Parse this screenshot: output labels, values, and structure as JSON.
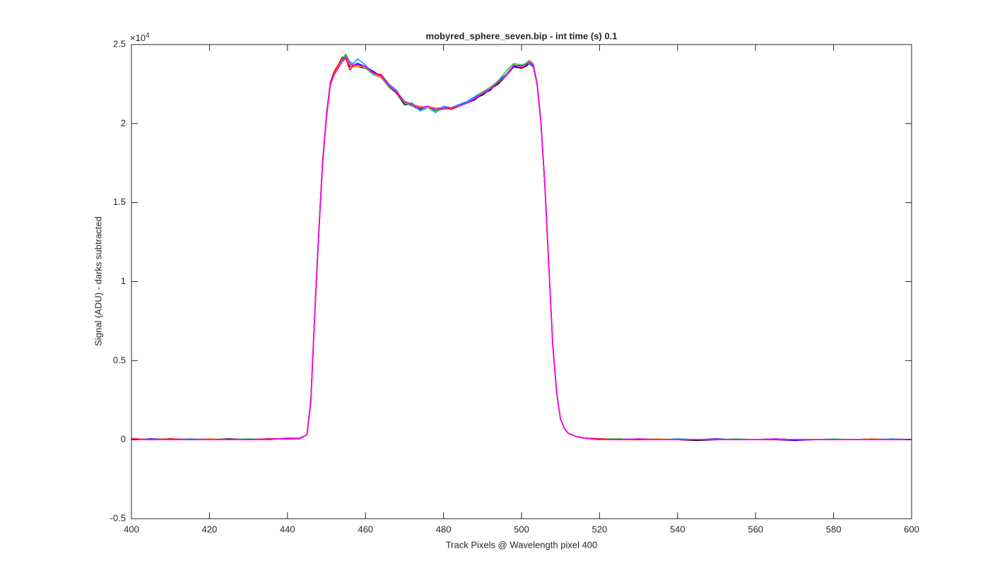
{
  "chart_data": {
    "type": "line",
    "title": "mobyred_sphere_seven.bip - int time (s) 0.1",
    "x_label": "Track Pixels @ Wavelength pixel 400",
    "y_label": "Signal (ADU) - darks subtracted",
    "y_multiplier": {
      "base": "×10",
      "exponent": "4"
    },
    "xlim": [
      400,
      600
    ],
    "xticks": [
      400,
      420,
      440,
      460,
      480,
      500,
      520,
      540,
      560,
      580,
      600
    ],
    "ylim": [
      -0.5,
      2.5
    ],
    "yticks": [
      -0.5,
      0,
      0.5,
      1,
      1.5,
      2,
      2.5
    ],
    "grid": false,
    "x": [
      400,
      405,
      410,
      415,
      420,
      425,
      430,
      435,
      440,
      443,
      445,
      446,
      447,
      448,
      449,
      450,
      451,
      452,
      453,
      454,
      455,
      456,
      457,
      458,
      460,
      462,
      464,
      466,
      468,
      470,
      472,
      474,
      476,
      478,
      480,
      482,
      484,
      486,
      488,
      490,
      492,
      494,
      496,
      498,
      500,
      501,
      502,
      503,
      504,
      505,
      506,
      507,
      508,
      509,
      510,
      511,
      512,
      514,
      516,
      520,
      525,
      530,
      535,
      540,
      545,
      550,
      555,
      560,
      565,
      570,
      575,
      580,
      585,
      590,
      595,
      600
    ],
    "series": [
      {
        "color": "#000000",
        "values": [
          0.005,
          0,
          0.005,
          0,
          0,
          0.005,
          0,
          0,
          0.01,
          0.005,
          0.03,
          0.26,
          0.8,
          1.3,
          1.76,
          2.06,
          2.26,
          2.33,
          2.37,
          2.41,
          2.42,
          2.37,
          2.36,
          2.36,
          2.35,
          2.33,
          2.29,
          2.24,
          2.19,
          2.12,
          2.12,
          2.1,
          2.1,
          2.09,
          2.09,
          2.1,
          2.11,
          2.13,
          2.16,
          2.18,
          2.22,
          2.25,
          2.3,
          2.36,
          2.35,
          2.36,
          2.38,
          2.37,
          2.25,
          2.0,
          1.6,
          1.1,
          0.6,
          0.3,
          0.13,
          0.07,
          0.04,
          0.02,
          0.01,
          0.005,
          0,
          0.005,
          0,
          0,
          -0.005,
          0,
          0,
          0,
          0.005,
          0,
          0,
          0,
          0,
          0,
          0,
          0
        ]
      },
      {
        "color": "#0000ff",
        "values": [
          0,
          0.005,
          0,
          0,
          0.005,
          0,
          0,
          0.005,
          0.005,
          0.01,
          0.03,
          0.24,
          0.79,
          1.29,
          1.74,
          2.04,
          2.24,
          2.32,
          2.36,
          2.4,
          2.41,
          2.36,
          2.37,
          2.38,
          2.36,
          2.33,
          2.3,
          2.23,
          2.19,
          2.13,
          2.11,
          2.09,
          2.11,
          2.08,
          2.1,
          2.1,
          2.12,
          2.13,
          2.15,
          2.19,
          2.21,
          2.27,
          2.31,
          2.36,
          2.37,
          2.37,
          2.38,
          2.36,
          2.25,
          2.0,
          1.6,
          1.1,
          0.6,
          0.3,
          0.13,
          0.07,
          0.04,
          0.02,
          0.01,
          0,
          0.005,
          0,
          0,
          0,
          0,
          0.005,
          0,
          0,
          0,
          -0.005,
          0,
          0,
          0,
          0.005,
          0,
          0
        ]
      },
      {
        "color": "#0099ff",
        "values": [
          0.005,
          0,
          0,
          0.005,
          0,
          0,
          0.005,
          0,
          0.01,
          0.005,
          0.03,
          0.25,
          0.81,
          1.31,
          1.75,
          2.05,
          2.25,
          2.33,
          2.37,
          2.4,
          2.43,
          2.39,
          2.38,
          2.41,
          2.37,
          2.31,
          2.31,
          2.25,
          2.21,
          2.13,
          2.13,
          2.08,
          2.1,
          2.07,
          2.11,
          2.1,
          2.12,
          2.14,
          2.17,
          2.2,
          2.23,
          2.26,
          2.31,
          2.37,
          2.36,
          2.38,
          2.38,
          2.37,
          2.24,
          2.0,
          1.61,
          1.1,
          0.61,
          0.3,
          0.13,
          0.07,
          0.04,
          0.02,
          0.01,
          0.005,
          0,
          0,
          0,
          0.005,
          0,
          0,
          0,
          0,
          0.005,
          0,
          0,
          0,
          0,
          0,
          0.005,
          0
        ]
      },
      {
        "color": "#33cc33",
        "values": [
          0,
          0,
          0.005,
          0,
          0,
          0,
          0.005,
          0,
          0.01,
          0.01,
          0.03,
          0.25,
          0.8,
          1.3,
          1.75,
          2.05,
          2.25,
          2.32,
          2.37,
          2.41,
          2.44,
          2.38,
          2.36,
          2.37,
          2.35,
          2.31,
          2.29,
          2.23,
          2.19,
          2.13,
          2.11,
          2.1,
          2.1,
          2.08,
          2.09,
          2.1,
          2.11,
          2.13,
          2.16,
          2.2,
          2.23,
          2.27,
          2.33,
          2.38,
          2.37,
          2.38,
          2.4,
          2.38,
          2.26,
          2.01,
          1.6,
          1.1,
          0.6,
          0.3,
          0.13,
          0.07,
          0.04,
          0.02,
          0.01,
          0.005,
          0.005,
          0,
          0,
          0,
          0,
          0,
          0.005,
          0,
          0,
          0,
          0,
          0.005,
          0,
          0,
          0,
          0
        ]
      },
      {
        "color": "#ff9900",
        "values": [
          0.01,
          0,
          0,
          0,
          0.005,
          0,
          0,
          0,
          0.01,
          0.005,
          0.03,
          0.25,
          0.8,
          1.3,
          1.75,
          2.05,
          2.24,
          2.31,
          2.36,
          2.39,
          2.41,
          2.37,
          2.36,
          2.36,
          2.36,
          2.32,
          2.29,
          2.24,
          2.2,
          2.14,
          2.12,
          2.11,
          2.1,
          2.1,
          2.1,
          2.1,
          2.11,
          2.13,
          2.16,
          2.19,
          2.22,
          2.26,
          2.3,
          2.37,
          2.36,
          2.37,
          2.39,
          2.37,
          2.25,
          2.0,
          1.6,
          1.1,
          0.6,
          0.3,
          0.13,
          0.07,
          0.04,
          0.02,
          0.01,
          0,
          0,
          0,
          0.005,
          0,
          0,
          0,
          0,
          0,
          0,
          0,
          0,
          0,
          0,
          0.005,
          0,
          0
        ]
      },
      {
        "color": "#ff0000",
        "values": [
          0,
          0,
          0.005,
          0,
          0,
          0,
          0,
          0.005,
          0.005,
          0.005,
          0.03,
          0.25,
          0.8,
          1.3,
          1.75,
          2.05,
          2.26,
          2.33,
          2.37,
          2.42,
          2.41,
          2.34,
          2.37,
          2.37,
          2.36,
          2.32,
          2.31,
          2.24,
          2.19,
          2.14,
          2.12,
          2.1,
          2.11,
          2.09,
          2.1,
          2.09,
          2.11,
          2.13,
          2.16,
          2.19,
          2.22,
          2.26,
          2.3,
          2.37,
          2.36,
          2.37,
          2.39,
          2.37,
          2.25,
          2.0,
          1.6,
          1.1,
          0.6,
          0.3,
          0.13,
          0.07,
          0.04,
          0.02,
          0.01,
          0.005,
          0,
          0,
          0,
          0,
          0,
          0,
          0,
          0,
          0,
          0,
          0,
          0,
          0,
          0,
          0,
          0
        ]
      },
      {
        "color": "#ff00ff",
        "values": [
          0.005,
          0,
          0,
          0,
          0,
          0,
          0,
          0,
          0.01,
          0.005,
          0.03,
          0.25,
          0.8,
          1.3,
          1.75,
          2.05,
          2.25,
          2.31,
          2.35,
          2.39,
          2.42,
          2.38,
          2.37,
          2.37,
          2.36,
          2.32,
          2.3,
          2.24,
          2.2,
          2.14,
          2.12,
          2.1,
          2.11,
          2.09,
          2.1,
          2.1,
          2.11,
          2.13,
          2.16,
          2.19,
          2.22,
          2.26,
          2.3,
          2.37,
          2.36,
          2.37,
          2.39,
          2.37,
          2.25,
          2.0,
          1.6,
          1.1,
          0.6,
          0.3,
          0.13,
          0.07,
          0.04,
          0.02,
          0.01,
          0,
          0,
          0.005,
          0,
          0,
          0,
          0,
          0,
          0,
          0.005,
          0,
          0,
          0,
          0,
          0,
          0,
          0
        ]
      }
    ]
  }
}
